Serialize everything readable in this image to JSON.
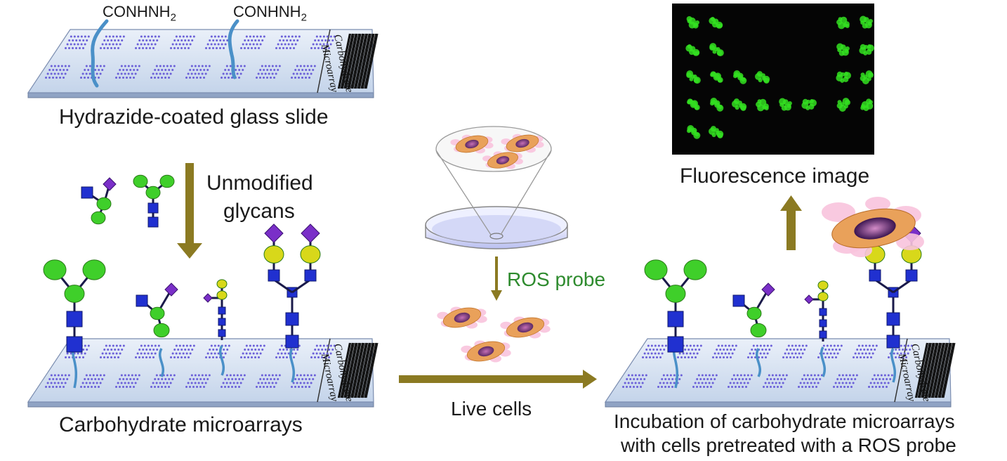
{
  "labels": {
    "chemical_group": "CONHNH",
    "chemical_subscript": "2",
    "slide_title": "Hydrazide-coated glass slide",
    "glycans_line1": "Unmodified",
    "glycans_line2": "glycans",
    "microarray_title": "Carbohydrate microarrays",
    "ros_probe": "ROS probe",
    "live_cells": "Live cells",
    "fluorescence": "Fluorescence image",
    "incubation_line1": "Incubation of carbohydrate microarrays",
    "incubation_line2": "with cells pretreated with a ROS probe"
  },
  "slide_text": {
    "line1": "Carbohydrate",
    "line2": "Microarray"
  },
  "colors": {
    "arrow": "#8b7a22",
    "ros_text": "#2e8b2e",
    "glycan_green": "#3fcf2a",
    "glycan_blue": "#2030d0",
    "glycan_yellow": "#d8d81a",
    "glycan_purple": "#7a2fc8",
    "linker": "#4a90c8",
    "slide_face": "#d7e3f3",
    "slide_spot": "#6a5fd8",
    "fluor_bg": "#050505",
    "fluor_spot": "#34e021",
    "cell_orange": "#e9a15a",
    "cell_nucleus": "#7a3a7a",
    "cell_pink": "#f8c3dd"
  }
}
